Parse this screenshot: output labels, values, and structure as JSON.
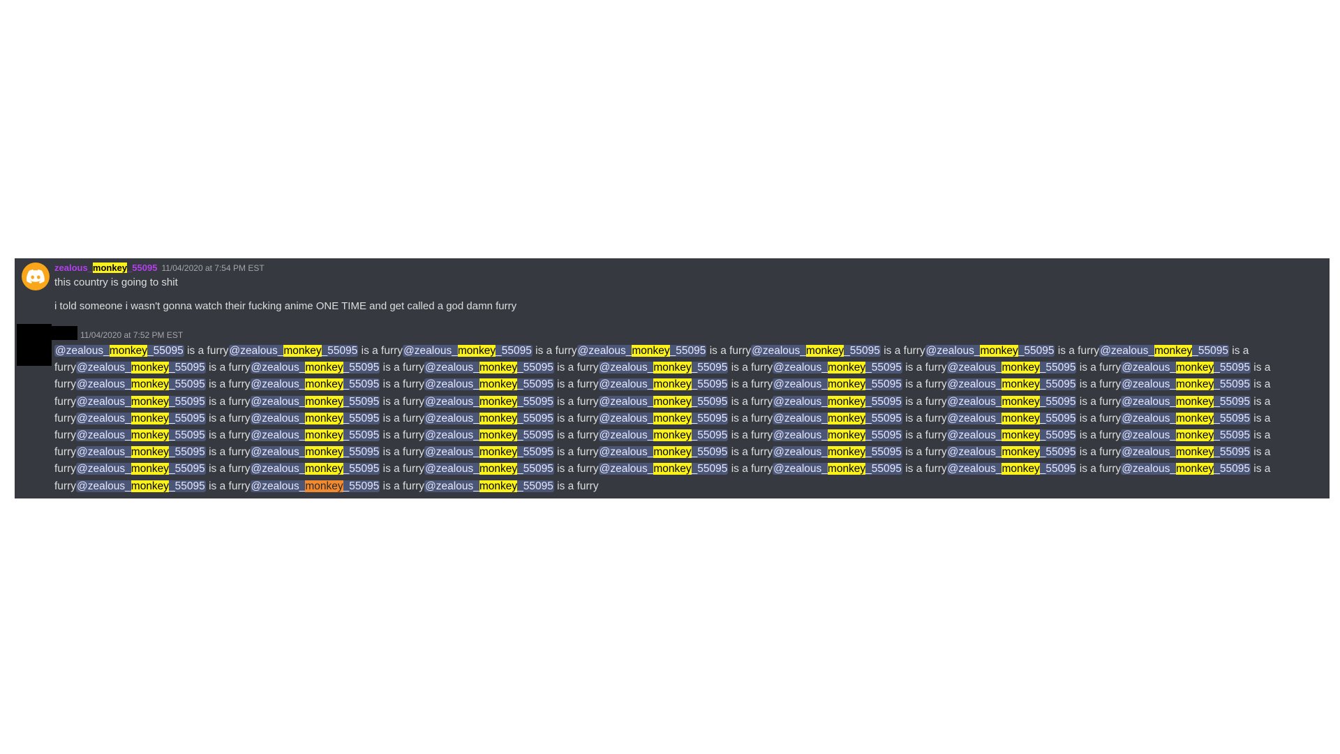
{
  "message1": {
    "avatar_icon": "discord-logo-icon",
    "avatar_color": "#faa61a",
    "username_prefix": "zealous_",
    "username_highlight": "monkey",
    "username_suffix": "_55095",
    "username_color": "#b53ff0",
    "timestamp": "11/04/2020 at 7:54 PM EST",
    "lines": [
      "this country is going to shit",
      "i told someone i wasn't gonna watch their fucking anime ONE TIME and get called a god damn furry"
    ]
  },
  "message2": {
    "timestamp": "11/04/2020 at 7:52 PM EST",
    "mention_prefix": "@zealous_",
    "mention_highlight": "monkey",
    "mention_suffix": "_55095",
    "phrase": " is a furry",
    "repeat_count": 59,
    "orange_highlight_index": 57,
    "highlight_color": "#fbf21a",
    "active_highlight_color": "#f38b2e"
  }
}
